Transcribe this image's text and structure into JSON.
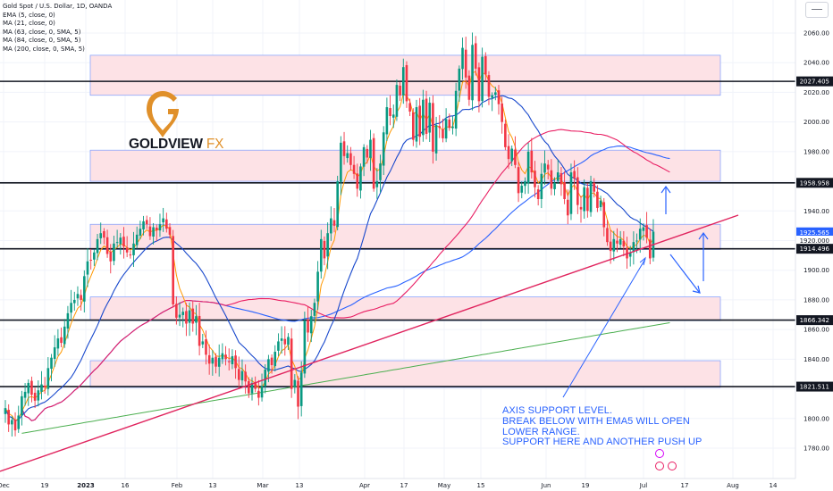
{
  "legend": {
    "title": "Gold Spot / U.S. Dollar, 1D, OANDA",
    "indicators": [
      "EMA (5, close, 0)",
      "MA (21, close, 0)",
      "MA (63, close, 0, SMA, 5)",
      "MA (84, close, 0, SMA, 5)",
      "MA (200, close, 0, SMA, 5)"
    ]
  },
  "brand": {
    "name": "GOLDVIEW",
    "suffix": "FX"
  },
  "annotation": [
    "AXIS SUPPORT LEVEL.",
    "BREAK BELOW WITH EMA5 WILL OPEN",
    "LOWER RANGE.",
    "SUPPORT HERE AND ANOTHER PUSH UP"
  ],
  "colors": {
    "bull": "#089981",
    "bear": "#f23645",
    "ema5": "#ff9800",
    "ma21": "#1848cc",
    "ma63": "#e91e63",
    "ma84": "#2962ff",
    "ma200": "#4caf50",
    "trend": "#e0245e",
    "zone": "#fde2e6",
    "zone_border": "#7b9cff",
    "accent": "#2962ff"
  },
  "chart_data": {
    "type": "candlestick",
    "symbol": "Gold Spot / U.S. Dollar",
    "timeframe": "1D",
    "y_range": [
      1755,
      2075
    ],
    "y_ticks": [
      1780,
      1800,
      1820,
      1840,
      1860,
      1880,
      1900,
      1920,
      1940,
      1960,
      1980,
      2000,
      2020,
      2040,
      2060
    ],
    "x_ticks": [
      "Dec",
      "19",
      "2023",
      "16",
      "Feb",
      "13",
      "Mar",
      "13",
      "Apr",
      "17",
      "May",
      "15",
      "Jun",
      "19",
      "Jul",
      "17",
      "Aug",
      "14"
    ],
    "price_labels": [
      {
        "value": 2027.405,
        "text": "2027.405",
        "style": "dark"
      },
      {
        "value": 1958.958,
        "text": "1958.958",
        "style": "dark"
      },
      {
        "value": 1925.565,
        "text": "1925.565",
        "style": "blue"
      },
      {
        "value": 1920.0,
        "text": "1920.000",
        "style": "plain"
      },
      {
        "value": 1914.496,
        "text": "1914.496",
        "style": "dark"
      },
      {
        "value": 1866.342,
        "text": "1866.342",
        "style": "dark"
      },
      {
        "value": 1821.511,
        "text": "1821.511",
        "style": "dark"
      }
    ],
    "horizontal_levels": [
      2027.405,
      1958.958,
      1914.496,
      1866.342,
      1821.511
    ],
    "zones": [
      [
        2018,
        2045
      ],
      [
        1960,
        1981
      ],
      [
        1914,
        1931
      ],
      [
        1866,
        1882
      ],
      [
        1821,
        1839
      ]
    ],
    "closes": [
      1807,
      1796,
      1799,
      1792,
      1802,
      1815,
      1818,
      1824,
      1816,
      1812,
      1819,
      1823,
      1821,
      1834,
      1841,
      1848,
      1854,
      1851,
      1862,
      1871,
      1878,
      1880,
      1884,
      1880,
      1896,
      1906,
      1907,
      1912,
      1921,
      1925,
      1922,
      1911,
      1906,
      1918,
      1919,
      1922,
      1916,
      1912,
      1910,
      1918,
      1924,
      1928,
      1933,
      1931,
      1923,
      1929,
      1927,
      1931,
      1935,
      1928,
      1924,
      1877,
      1868,
      1870,
      1872,
      1864,
      1873,
      1864,
      1869,
      1849,
      1852,
      1843,
      1837,
      1841,
      1835,
      1841,
      1844,
      1840,
      1838,
      1842,
      1834,
      1826,
      1832,
      1825,
      1817,
      1824,
      1820,
      1814,
      1822,
      1833,
      1840,
      1836,
      1845,
      1852,
      1854,
      1850,
      1855,
      1820,
      1826,
      1808,
      1831,
      1866,
      1858,
      1869,
      1878,
      1899,
      1921,
      1908,
      1925,
      1935,
      1930,
      1960,
      1986,
      1977,
      1979,
      1971,
      1965,
      1955,
      1970,
      1983,
      1976,
      1988,
      1955,
      1960,
      1972,
      1993,
      2010,
      2004,
      2005,
      2025,
      2018,
      2037,
      2014,
      2007,
      1988,
      2010,
      1990,
      2015,
      1992,
      2013,
      1980,
      1998,
      1996,
      1989,
      2002,
      1996,
      1997,
      2021,
      2036,
      2050,
      2030,
      2015,
      2052,
      2036,
      2014,
      2044,
      2032,
      2017,
      2018,
      2020,
      2012,
      2000,
      1983,
      1975,
      1982,
      1971,
      1952,
      1957,
      1960,
      1980,
      1966,
      1956,
      1948,
      1965,
      1972,
      1968,
      1955,
      1959,
      1966,
      1958,
      1948,
      1937,
      1966,
      1962,
      1944,
      1941,
      1956,
      1940,
      1960,
      1953,
      1942,
      1947,
      1929,
      1919,
      1913,
      1921,
      1918,
      1921,
      1916,
      1908,
      1912,
      1919,
      1920,
      1928,
      1929,
      1922,
      1908,
      1926
    ],
    "series": [
      {
        "name": "EMA (5, close, 0)"
      },
      {
        "name": "MA (21, close, 0)"
      },
      {
        "name": "MA (63, close, 0, SMA, 5)"
      },
      {
        "name": "MA (84, close, 0, SMA, 5)"
      },
      {
        "name": "MA (200, close, 0, SMA, 5)"
      }
    ]
  }
}
